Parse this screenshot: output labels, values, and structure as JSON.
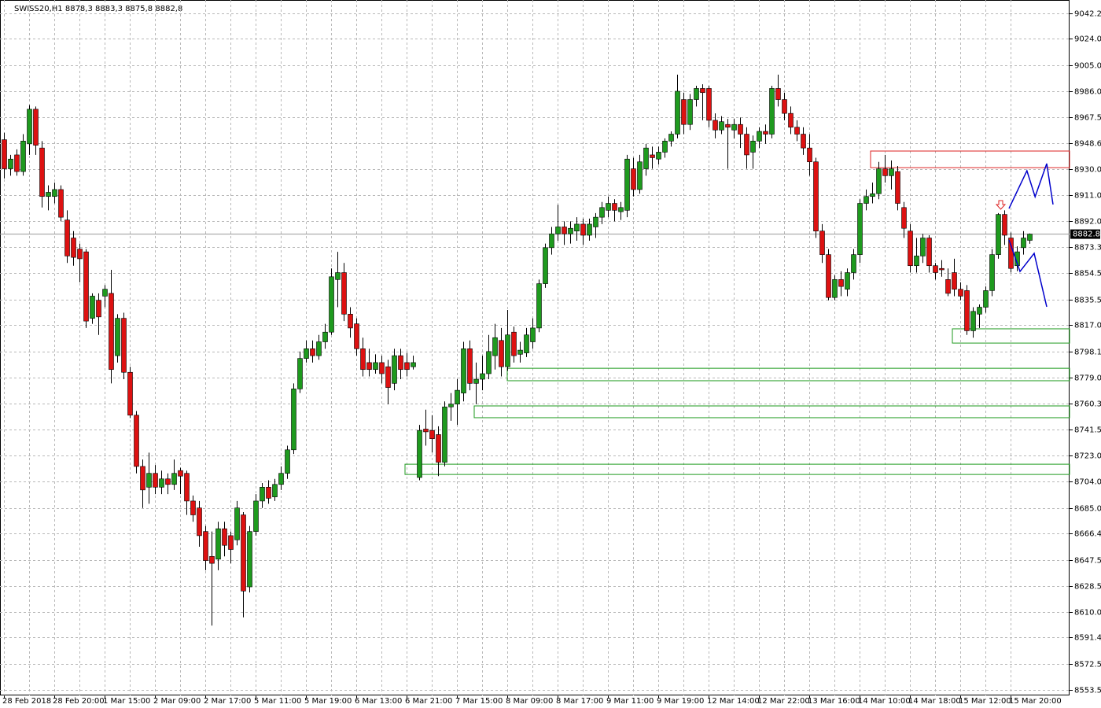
{
  "chart_data": {
    "type": "candlestick",
    "title": "SWISS20,H1  8878,3 8883,3 8875,8 8882,8",
    "up_color": "#1e9a1e",
    "down_color": "#dd1111",
    "grid": true,
    "ylim": [
      8549.6,
      9051.9
    ],
    "yticks": [
      9042.2,
      {
        "value": 9024,
        "label": "9024.0"
      },
      {
        "value": 9005,
        "label": "9005.0"
      },
      {
        "value": 8986,
        "label": "8986.0"
      },
      8967.5,
      8948.6,
      {
        "value": 8930,
        "label": "8930.0"
      },
      {
        "value": 8911,
        "label": "8911.0"
      },
      {
        "value": 8892,
        "label": "8892.0"
      },
      8873.3,
      8854.5,
      8835.5,
      {
        "value": 8817,
        "label": "8817.0"
      },
      8798.1,
      {
        "value": 8779,
        "label": "8779.0"
      },
      8760.3,
      8741.5,
      {
        "value": 8723,
        "label": "8723.0"
      },
      {
        "value": 8704,
        "label": "8704.0"
      },
      {
        "value": 8685,
        "label": "8685.0"
      },
      8666.4,
      8647.5,
      8628.5,
      {
        "value": 8610,
        "label": "8610.0"
      },
      8591.4,
      8572.5,
      8553.5
    ],
    "current_price": 8882.8,
    "categories": [
      "28 Feb 2018",
      null,
      null,
      null,
      null,
      null,
      null,
      null,
      "28 Feb 20:00",
      null,
      null,
      null,
      null,
      null,
      null,
      null,
      "1 Mar 15:00",
      null,
      null,
      null,
      null,
      null,
      null,
      null,
      "2 Mar 09:00",
      null,
      null,
      null,
      null,
      null,
      null,
      null,
      "2 Mar 17:00",
      null,
      null,
      null,
      null,
      null,
      null,
      null,
      "5 Mar 11:00",
      null,
      null,
      null,
      null,
      null,
      null,
      null,
      "5 Mar 19:00",
      null,
      null,
      null,
      null,
      null,
      null,
      null,
      "6 Mar 13:00",
      null,
      null,
      null,
      null,
      null,
      null,
      null,
      "6 Mar 21:00",
      null,
      null,
      null,
      null,
      null,
      null,
      null,
      "7 Mar 15:00",
      null,
      null,
      null,
      null,
      null,
      null,
      null,
      "8 Mar 09:00",
      null,
      null,
      null,
      null,
      null,
      null,
      null,
      "8 Mar 17:00",
      null,
      null,
      null,
      null,
      null,
      null,
      null,
      "9 Mar 11:00",
      null,
      null,
      null,
      null,
      null,
      null,
      null,
      "9 Mar 19:00",
      null,
      null,
      null,
      null,
      null,
      null,
      null,
      "12 Mar 14:00",
      null,
      null,
      null,
      null,
      null,
      null,
      null,
      "12 Mar 22:00",
      null,
      null,
      null,
      null,
      null,
      null,
      null,
      "13 Mar 16:00",
      null,
      null,
      null,
      null,
      null,
      null,
      null,
      "14 Mar 10:00",
      null,
      null,
      null,
      null,
      null,
      null,
      null,
      "14 Mar 18:00",
      null,
      null,
      null,
      null,
      null,
      null,
      null,
      "15 Mar 12:00",
      null,
      null,
      null,
      null,
      null,
      null,
      null,
      "15 Mar 20:00",
      null,
      null,
      null
    ],
    "open": [
      8951,
      8930,
      8940,
      8928,
      8948,
      8973,
      8945,
      8910,
      8910,
      8915,
      8893,
      8880,
      8872,
      8870,
      8822,
      8835,
      8838,
      8840,
      8795,
      8822,
      8783,
      8752,
      8715,
      8700,
      8710,
      8700,
      8706,
      8702,
      8712,
      8710,
      8690,
      8685,
      8668,
      8650,
      8648,
      8670,
      8665,
      8662,
      8680,
      8628,
      8668,
      8690,
      8700,
      8693,
      8702,
      8710,
      8727,
      8771,
      8793,
      8800,
      8795,
      8805,
      8812,
      8850,
      8855,
      8825,
      8818,
      8800,
      8790,
      8785,
      8790,
      8787,
      8775,
      8795,
      8790,
      8787,
      8707,
      8742,
      8741,
      8738,
      8718,
      8758,
      8760,
      8768,
      8800,
      8775,
      8778,
      8782,
      8795,
      8806,
      8787,
      8812,
      8796,
      8797,
      8805,
      8815,
      8847,
      8873,
      8883,
      8888,
      8883,
      8885,
      8890,
      8882,
      8888,
      8895,
      8900,
      8905,
      8899,
      8900,
      8930,
      8915,
      8930,
      8940,
      8937,
      8942,
      8950,
      8955,
      8980,
      8962,
      8980,
      8988,
      8988,
      8965,
      8958,
      8962,
      8958,
      8962,
      8955,
      8942,
      8950,
      8957,
      8955,
      8988,
      8980,
      8970,
      8960,
      8955,
      8945,
      8935,
      8885,
      8868,
      8837,
      8850,
      8843,
      8855,
      8868,
      8905,
      8910,
      8912,
      8930,
      8925,
      8928,
      8902,
      8885,
      8860,
      8867,
      8880,
      8860,
      8858,
      8850,
      8855,
      8843,
      8842,
      8813,
      8825,
      8830,
      8842,
      8868,
      8897,
      8880,
      8860,
      8873,
      8878.3
    ],
    "high": [
      8956,
      8940,
      8944,
      8955,
      8976,
      8975,
      8950,
      8918,
      8920,
      8918,
      8900,
      8885,
      8876,
      8872,
      8840,
      8840,
      8846,
      8857,
      8825,
      8826,
      8787,
      8755,
      8720,
      8725,
      8716,
      8712,
      8710,
      8720,
      8714,
      8712,
      8694,
      8690,
      8672,
      8668,
      8675,
      8675,
      8668,
      8690,
      8682,
      8672,
      8695,
      8703,
      8705,
      8706,
      8715,
      8730,
      8775,
      8798,
      8806,
      8806,
      8810,
      8818,
      8858,
      8870,
      8862,
      8830,
      8822,
      8808,
      8800,
      8796,
      8795,
      8792,
      8800,
      8800,
      8797,
      8795,
      8745,
      8756,
      8752,
      8744,
      8762,
      8768,
      8778,
      8805,
      8806,
      8790,
      8795,
      8810,
      8818,
      8815,
      8828,
      8816,
      8805,
      8815,
      8822,
      8850,
      8876,
      8888,
      8904,
      8892,
      8892,
      8895,
      8894,
      8894,
      8898,
      8906,
      8910,
      8908,
      8906,
      8940,
      8938,
      8940,
      8948,
      8946,
      8946,
      8952,
      8957,
      8998,
      8985,
      8984,
      8990,
      8991,
      8990,
      8970,
      8968,
      8966,
      8966,
      8967,
      8960,
      8954,
      8960,
      8962,
      8990,
      8998,
      8985,
      8975,
      8965,
      8960,
      8955,
      8938,
      8890,
      8872,
      8853,
      8856,
      8858,
      8872,
      8908,
      8915,
      8920,
      8935,
      8940,
      8936,
      8932,
      8906,
      8890,
      8880,
      8883,
      8882,
      8862,
      8864,
      8858,
      8865,
      8848,
      8846,
      8830,
      8832,
      8845,
      8872,
      8898,
      8900,
      8884,
      8874,
      8885,
      8883.3
    ],
    "low": [
      8923,
      8925,
      8925,
      8925,
      8940,
      8940,
      8902,
      8900,
      8905,
      8892,
      8862,
      8860,
      8848,
      8815,
      8818,
      8810,
      8830,
      8775,
      8790,
      8778,
      8750,
      8710,
      8685,
      8688,
      8695,
      8695,
      8695,
      8698,
      8695,
      8680,
      8675,
      8657,
      8640,
      8600,
      8640,
      8650,
      8645,
      8658,
      8606,
      8624,
      8665,
      8685,
      8688,
      8690,
      8698,
      8706,
      8724,
      8768,
      8790,
      8790,
      8792,
      8800,
      8810,
      8830,
      8820,
      8808,
      8795,
      8780,
      8780,
      8782,
      8775,
      8760,
      8770,
      8778,
      8780,
      8785,
      8705,
      8730,
      8725,
      8708,
      8715,
      8748,
      8745,
      8762,
      8770,
      8760,
      8770,
      8778,
      8785,
      8780,
      8784,
      8790,
      8790,
      8794,
      8800,
      8812,
      8844,
      8868,
      8878,
      8875,
      8876,
      8878,
      8875,
      8878,
      8880,
      8890,
      8895,
      8892,
      8893,
      8895,
      8910,
      8912,
      8925,
      8930,
      8933,
      8938,
      8946,
      8952,
      8955,
      8958,
      8975,
      8965,
      8960,
      8952,
      8955,
      8930,
      8952,
      8945,
      8930,
      8930,
      8945,
      8948,
      8952,
      8975,
      8965,
      8955,
      8950,
      8940,
      8925,
      8880,
      8862,
      8835,
      8835,
      8838,
      8838,
      8850,
      8862,
      8900,
      8905,
      8908,
      8920,
      8915,
      8900,
      8880,
      8855,
      8855,
      8862,
      8855,
      8850,
      8852,
      8838,
      8838,
      8835,
      8810,
      8808,
      8815,
      8826,
      8838,
      8865,
      8875,
      8855,
      8856,
      8868,
      8875.8
    ],
    "close": [
      8930,
      8937,
      8928,
      8950,
      8973,
      8947,
      8910,
      8913,
      8915,
      8895,
      8867,
      8866,
      8865,
      8820,
      8838,
      8823,
      8843,
      8785,
      8822,
      8783,
      8752,
      8715,
      8698,
      8710,
      8700,
      8706,
      8702,
      8710,
      8708,
      8690,
      8680,
      8665,
      8647,
      8645,
      8670,
      8658,
      8655,
      8685,
      8625,
      8668,
      8690,
      8700,
      8692,
      8702,
      8710,
      8727,
      8771,
      8793,
      8800,
      8795,
      8805,
      8812,
      8852,
      8855,
      8825,
      8815,
      8800,
      8785,
      8785,
      8790,
      8782,
      8772,
      8795,
      8785,
      8785,
      8790,
      8741,
      8740,
      8735,
      8718,
      8758,
      8760,
      8770,
      8800,
      8775,
      8778,
      8782,
      8798,
      8808,
      8787,
      8810,
      8795,
      8799,
      8810,
      8815,
      8847,
      8873,
      8883,
      8888,
      8883,
      8887,
      8890,
      8882,
      8890,
      8895,
      8902,
      8905,
      8900,
      8902,
      8937,
      8915,
      8935,
      8945,
      8938,
      8942,
      8950,
      8955,
      8986,
      8962,
      8980,
      8988,
      8985,
      8965,
      8958,
      8964,
      8960,
      8962,
      8955,
      8940,
      8950,
      8957,
      8955,
      8988,
      8980,
      8970,
      8960,
      8955,
      8945,
      8935,
      8885,
      8868,
      8837,
      8850,
      8845,
      8855,
      8868,
      8905,
      8910,
      8912,
      8930,
      8925,
      8930,
      8905,
      8887,
      8860,
      8867,
      8880,
      8860,
      8855,
      8857,
      8840,
      8843,
      8838,
      8813,
      8827,
      8830,
      8842,
      8868,
      8897,
      8882,
      8858,
      8870,
      8880,
      8882.8
    ],
    "zones": [
      {
        "start": 137.75,
        "top": 8942.8,
        "bottom": 8930.8,
        "color": "#dd2222"
      },
      {
        "start": 150.75,
        "top": 8814.4,
        "bottom": 8804.1,
        "color": "#1e9a1e"
      },
      {
        "start": 80,
        "top": 8785.9,
        "bottom": 8776.9,
        "color": "#1e9a1e"
      },
      {
        "start": 74.75,
        "top": 8758.7,
        "bottom": 8750.2,
        "color": "#1e9a1e"
      },
      {
        "start": 63.75,
        "top": 8716.6,
        "bottom": 8709.2,
        "color": "#1e9a1e"
      }
    ],
    "projections": [
      {
        "color": "#0000cc",
        "x": [
          159.75,
          162.6,
          163.9,
          165.75,
          166.75
        ],
        "y": [
          8901.3,
          8928.6,
          8909.8,
          8933.7,
          8904.2
        ]
      },
      {
        "color": "#0000cc",
        "x": [
          159.75,
          161.5,
          163.75,
          165.75
        ],
        "y": [
          8878.6,
          8855.8,
          8868.9,
          8830.3
        ]
      }
    ]
  }
}
